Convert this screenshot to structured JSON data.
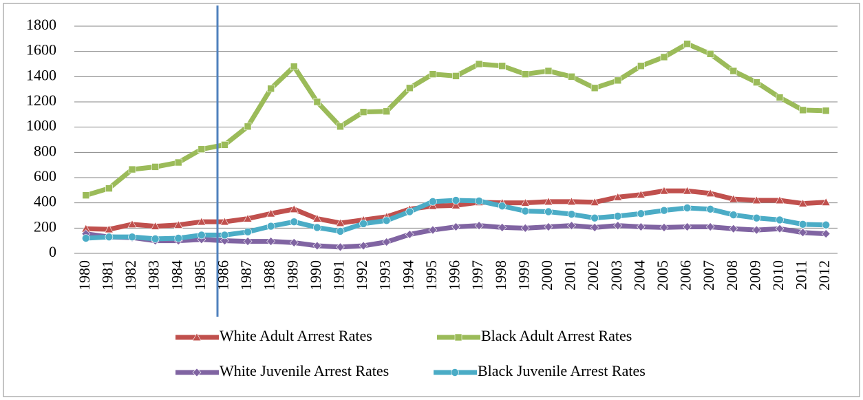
{
  "chart_data": {
    "type": "line",
    "categories": [
      "1980",
      "1981",
      "1982",
      "1983",
      "1984",
      "1985",
      "1986",
      "1987",
      "1988",
      "1989",
      "1990",
      "1991",
      "1992",
      "1993",
      "1994",
      "1995",
      "1996",
      "1997",
      "1998",
      "1999",
      "2000",
      "2001",
      "2002",
      "2003",
      "2004",
      "2005",
      "2006",
      "2007",
      "2008",
      "2009",
      "2010",
      "2011",
      "2012"
    ],
    "series": [
      {
        "name": "White Adult Arrest Rates",
        "color": "#c0504d",
        "marker": "triangle",
        "values": [
          195,
          190,
          230,
          215,
          225,
          250,
          250,
          275,
          315,
          350,
          275,
          240,
          265,
          290,
          350,
          375,
          380,
          405,
          400,
          400,
          410,
          410,
          405,
          445,
          465,
          495,
          495,
          475,
          430,
          420,
          420,
          395,
          405
        ]
      },
      {
        "name": "Black Adult Arrest Rates",
        "color": "#9bbb59",
        "marker": "square",
        "values": [
          460,
          515,
          665,
          685,
          720,
          825,
          860,
          1005,
          1305,
          1480,
          1200,
          1005,
          1120,
          1125,
          1310,
          1420,
          1405,
          1500,
          1485,
          1420,
          1445,
          1400,
          1310,
          1370,
          1485,
          1555,
          1660,
          1580,
          1445,
          1355,
          1235,
          1135,
          1130
        ]
      },
      {
        "name": "White Juvenile Arrest Rates",
        "color": "#8064a2",
        "marker": "diamond",
        "values": [
          155,
          130,
          125,
          100,
          100,
          110,
          100,
          95,
          95,
          85,
          60,
          50,
          60,
          90,
          150,
          185,
          210,
          220,
          205,
          200,
          210,
          220,
          205,
          220,
          210,
          205,
          210,
          210,
          195,
          185,
          195,
          165,
          155
        ]
      },
      {
        "name": "Black Juvenile Arrest Rates",
        "color": "#4bacc6",
        "marker": "circle",
        "values": [
          120,
          130,
          130,
          115,
          120,
          145,
          145,
          170,
          215,
          250,
          205,
          175,
          235,
          260,
          330,
          410,
          420,
          415,
          375,
          335,
          330,
          310,
          280,
          295,
          315,
          340,
          360,
          350,
          305,
          280,
          265,
          230,
          225
        ]
      }
    ],
    "ylim": [
      0,
      1800
    ],
    "yticks": [
      0,
      200,
      400,
      600,
      800,
      1000,
      1200,
      1400,
      1600,
      1800
    ],
    "grid": true,
    "legend": "bottom"
  }
}
